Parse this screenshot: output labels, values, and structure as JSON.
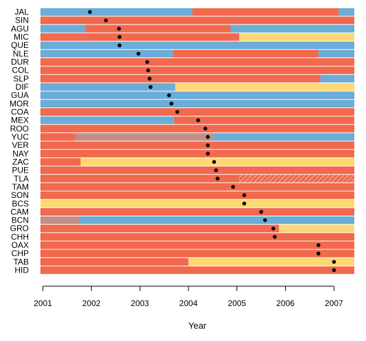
{
  "chart_data": {
    "type": "timeline",
    "xlabel": "Year",
    "xlim": [
      2000.95,
      2007.42
    ],
    "xticks": [
      "2001",
      "2002",
      "2003",
      "2004",
      "2005",
      "2006",
      "2007"
    ],
    "colors": {
      "red": "#f2694e",
      "blue": "#6badd8",
      "yellow": "#fdd873",
      "gray": "#c09088",
      "hatch": "#f2694e",
      "separator": "#e8e8e8",
      "dot": "#000000"
    },
    "rows": [
      {
        "state": "JAL",
        "dot": 2001.97,
        "segments": [
          [
            "blue",
            2000.95,
            2004.08
          ],
          [
            "red",
            2004.08,
            2007.1
          ],
          [
            "blue",
            2007.1,
            2007.42
          ]
        ]
      },
      {
        "state": "SIN",
        "dot": 2002.3,
        "segments": [
          [
            "red",
            2000.95,
            2007.42
          ]
        ]
      },
      {
        "state": "AGU",
        "dot": 2002.57,
        "segments": [
          [
            "blue",
            2000.95,
            2001.87
          ],
          [
            "red",
            2001.87,
            2004.87
          ],
          [
            "blue",
            2004.87,
            2007.42
          ]
        ]
      },
      {
        "state": "MIC",
        "dot": 2002.58,
        "segments": [
          [
            "red",
            2000.95,
            2005.05
          ],
          [
            "yellow",
            2005.05,
            2007.42
          ]
        ]
      },
      {
        "state": "QUE",
        "dot": 2002.58,
        "segments": [
          [
            "blue",
            2000.95,
            2007.42
          ]
        ]
      },
      {
        "state": "NLE",
        "dot": 2002.97,
        "segments": [
          [
            "blue",
            2000.95,
            2003.68
          ],
          [
            "red",
            2003.68,
            2006.68
          ],
          [
            "blue",
            2006.68,
            2007.42
          ]
        ]
      },
      {
        "state": "DUR",
        "dot": 2003.15,
        "segments": [
          [
            "red",
            2000.95,
            2007.42
          ]
        ]
      },
      {
        "state": "COL",
        "dot": 2003.17,
        "segments": [
          [
            "red",
            2000.95,
            2007.42
          ]
        ]
      },
      {
        "state": "SLP",
        "dot": 2003.2,
        "segments": [
          [
            "red",
            2000.95,
            2006.72
          ],
          [
            "blue",
            2006.72,
            2007.42
          ]
        ]
      },
      {
        "state": "DIF",
        "dot": 2003.22,
        "segments": [
          [
            "blue",
            2000.95,
            2003.73
          ],
          [
            "yellow",
            2003.73,
            2007.42
          ]
        ]
      },
      {
        "state": "GUA",
        "dot": 2003.6,
        "segments": [
          [
            "blue",
            2000.95,
            2007.42
          ]
        ]
      },
      {
        "state": "MOR",
        "dot": 2003.65,
        "segments": [
          [
            "blue",
            2000.95,
            2007.42
          ]
        ]
      },
      {
        "state": "COA",
        "dot": 2003.77,
        "segments": [
          [
            "red",
            2000.95,
            2007.42
          ]
        ]
      },
      {
        "state": "MEX",
        "dot": 2004.2,
        "segments": [
          [
            "blue",
            2000.95,
            2003.7
          ],
          [
            "red",
            2003.7,
            2007.42
          ]
        ]
      },
      {
        "state": "ROO",
        "dot": 2004.35,
        "segments": [
          [
            "red",
            2000.95,
            2007.42
          ]
        ]
      },
      {
        "state": "YUC",
        "dot": 2004.4,
        "segments": [
          [
            "red",
            2000.95,
            2001.67
          ],
          [
            "gray",
            2001.67,
            2004.52
          ],
          [
            "blue",
            2004.52,
            2007.42
          ]
        ]
      },
      {
        "state": "VER",
        "dot": 2004.4,
        "segments": [
          [
            "red",
            2000.95,
            2007.42
          ]
        ]
      },
      {
        "state": "NAY",
        "dot": 2004.4,
        "segments": [
          [
            "red",
            2000.95,
            2007.42
          ]
        ]
      },
      {
        "state": "ZAC",
        "dot": 2004.53,
        "segments": [
          [
            "red",
            2000.95,
            2001.78
          ],
          [
            "yellow",
            2001.78,
            2007.42
          ]
        ]
      },
      {
        "state": "PUE",
        "dot": 2004.57,
        "segments": [
          [
            "red",
            2000.95,
            2007.42
          ]
        ]
      },
      {
        "state": "TLA",
        "dot": 2004.6,
        "segments": [
          [
            "red",
            2000.95,
            2005.05
          ],
          [
            "hatch",
            2005.05,
            2007.42
          ]
        ]
      },
      {
        "state": "TAM",
        "dot": 2004.92,
        "segments": [
          [
            "red",
            2000.95,
            2007.42
          ]
        ]
      },
      {
        "state": "SON",
        "dot": 2005.15,
        "segments": [
          [
            "red",
            2000.95,
            2007.42
          ]
        ]
      },
      {
        "state": "BCS",
        "dot": 2005.15,
        "segments": [
          [
            "yellow",
            2000.95,
            2007.42
          ]
        ]
      },
      {
        "state": "CAM",
        "dot": 2005.5,
        "segments": [
          [
            "red",
            2000.95,
            2007.42
          ]
        ]
      },
      {
        "state": "BCN",
        "dot": 2005.58,
        "segments": [
          [
            "gray",
            2000.95,
            2001.77
          ],
          [
            "blue",
            2001.77,
            2007.42
          ]
        ]
      },
      {
        "state": "GRO",
        "dot": 2005.75,
        "segments": [
          [
            "red",
            2000.95,
            2005.87
          ],
          [
            "yellow",
            2005.87,
            2007.42
          ]
        ]
      },
      {
        "state": "CHH",
        "dot": 2005.78,
        "segments": [
          [
            "red",
            2000.95,
            2007.42
          ]
        ]
      },
      {
        "state": "OAX",
        "dot": 2006.68,
        "segments": [
          [
            "red",
            2000.95,
            2007.42
          ]
        ]
      },
      {
        "state": "CHP",
        "dot": 2006.68,
        "segments": [
          [
            "red",
            2000.95,
            2007.42
          ]
        ]
      },
      {
        "state": "TAB",
        "dot": 2007.0,
        "segments": [
          [
            "red",
            2000.95,
            2004.0
          ],
          [
            "yellow",
            2004.0,
            2007.42
          ]
        ]
      },
      {
        "state": "HID",
        "dot": 2007.0,
        "segments": [
          [
            "red",
            2000.95,
            2007.42
          ]
        ]
      }
    ]
  }
}
